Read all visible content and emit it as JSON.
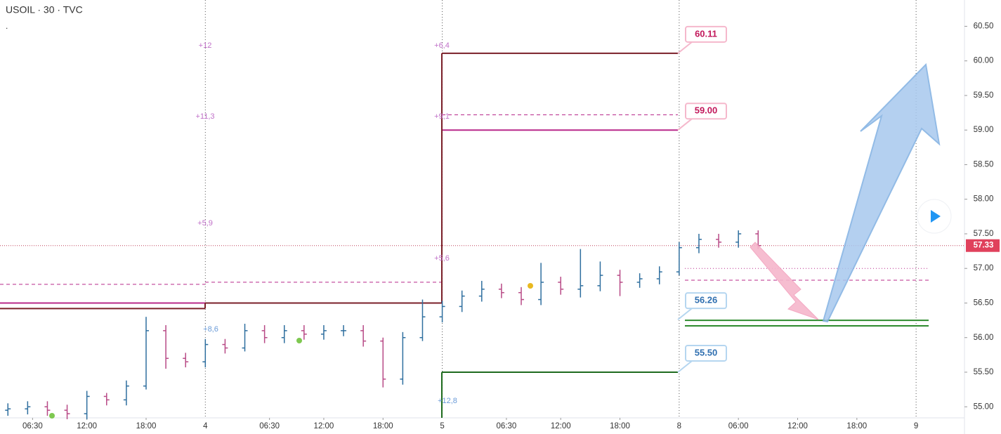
{
  "chart_data": {
    "type": "ohlc",
    "title": "USOIL · 30 · TVC",
    "subtitle": ".",
    "x": [
      -20,
      -18,
      -16,
      -14,
      -12,
      -10,
      -8,
      -6,
      -4,
      -2,
      0,
      2,
      4,
      6,
      8,
      10,
      12,
      14,
      16,
      18,
      20,
      22,
      24,
      26,
      28,
      30,
      32,
      34,
      36,
      38,
      40,
      42,
      44,
      46,
      48,
      50,
      52,
      54,
      56
    ],
    "open": [
      54.95,
      54.97,
      55.0,
      54.95,
      54.9,
      55.15,
      55.1,
      55.3,
      56.1,
      55.7,
      55.65,
      55.9,
      55.85,
      56.1,
      56.0,
      56.1,
      56.05,
      56.1,
      56.1,
      55.95,
      55.4,
      56.0,
      56.3,
      56.45,
      56.6,
      56.7,
      56.65,
      56.55,
      56.8,
      56.7,
      56.75,
      56.9,
      56.8,
      56.85,
      56.95,
      57.3,
      57.42,
      57.38,
      57.5
    ],
    "high": [
      55.05,
      55.08,
      55.08,
      55.03,
      55.23,
      55.2,
      55.38,
      56.3,
      56.18,
      55.78,
      55.98,
      55.98,
      56.2,
      56.18,
      56.18,
      56.18,
      56.18,
      56.18,
      56.18,
      56.0,
      56.08,
      56.55,
      56.53,
      56.68,
      56.82,
      56.78,
      56.73,
      57.08,
      56.88,
      57.28,
      57.1,
      56.98,
      56.93,
      57.03,
      57.38,
      57.5,
      57.5,
      57.55,
      57.55
    ],
    "low": [
      54.87,
      54.89,
      54.87,
      54.82,
      54.82,
      55.02,
      55.02,
      55.25,
      55.55,
      55.57,
      55.57,
      55.77,
      55.8,
      55.92,
      55.92,
      55.97,
      55.97,
      56.02,
      55.87,
      55.28,
      55.32,
      55.95,
      56.22,
      56.37,
      56.52,
      56.57,
      56.47,
      56.47,
      56.62,
      56.58,
      56.67,
      56.6,
      56.72,
      56.77,
      56.9,
      57.22,
      57.3,
      57.3,
      57.28
    ],
    "close": [
      54.97,
      55.0,
      54.95,
      54.9,
      55.15,
      55.1,
      55.3,
      56.1,
      55.7,
      55.65,
      55.9,
      55.85,
      56.1,
      56.0,
      56.1,
      56.05,
      56.1,
      56.1,
      55.95,
      55.4,
      56.0,
      56.3,
      56.45,
      56.6,
      56.7,
      56.65,
      56.55,
      56.8,
      56.7,
      56.75,
      56.9,
      56.8,
      56.85,
      56.95,
      57.3,
      57.42,
      57.38,
      57.5,
      57.33
    ],
    "up_color": "#2f6f9f",
    "down_color": "#b84a86",
    "xlim": [
      -20.8,
      76.9
    ],
    "xticks": [
      {
        "value": -17.5,
        "label": "06:30"
      },
      {
        "value": -12,
        "label": "12:00"
      },
      {
        "value": -6,
        "label": "18:00"
      },
      {
        "value": 0,
        "label": "4"
      },
      {
        "value": 6.5,
        "label": "06:30"
      },
      {
        "value": 12,
        "label": "12:00"
      },
      {
        "value": 18,
        "label": "18:00"
      },
      {
        "value": 24,
        "label": "5"
      },
      {
        "value": 30.5,
        "label": "06:30"
      },
      {
        "value": 36,
        "label": "12:00"
      },
      {
        "value": 42,
        "label": "18:00"
      },
      {
        "value": 48,
        "label": "8"
      },
      {
        "value": 54,
        "label": "06:00"
      },
      {
        "value": 60,
        "label": "12:00"
      },
      {
        "value": 66,
        "label": "18:00"
      },
      {
        "value": 72,
        "label": "9"
      }
    ],
    "ylim": [
      54.84,
      60.88
    ],
    "yticks": [
      {
        "value": 55,
        "label": "55.00"
      },
      {
        "value": 55.5,
        "label": "55.50"
      },
      {
        "value": 56,
        "label": "56.00"
      },
      {
        "value": 56.5,
        "label": "56.50"
      },
      {
        "value": 57,
        "label": "57.00"
      },
      {
        "value": 57.5,
        "label": "57.50"
      },
      {
        "value": 58,
        "label": "58.00"
      },
      {
        "value": 58.5,
        "label": "58.50"
      },
      {
        "value": 59,
        "label": "59.00"
      },
      {
        "value": 59.5,
        "label": "59.50"
      },
      {
        "value": 60,
        "label": "60.00"
      },
      {
        "value": 60.5,
        "label": "60.50"
      }
    ],
    "last_price": {
      "value": 57.33,
      "label": "57.33"
    },
    "price_labels": [
      {
        "value": 60.11,
        "label": "60.11",
        "color": "#c2185b"
      },
      {
        "value": 59.0,
        "label": "59.00",
        "color": "#c2185b"
      },
      {
        "value": 56.26,
        "label": "56.26",
        "color": "#2f6fb0"
      },
      {
        "value": 55.5,
        "label": "55.50",
        "color": "#2f6fb0"
      }
    ],
    "levels": [
      {
        "value": 56.42,
        "color": "#7a1f28",
        "style": "solid"
      },
      {
        "value": 56.5,
        "color": "#b8288a",
        "style": "solid"
      },
      {
        "value": 56.77,
        "color": "#b8288a",
        "style": "dashed"
      },
      {
        "value": 56.8,
        "color": "#b8288a",
        "style": "dashed"
      },
      {
        "value": 56.5,
        "color": "#7a1f28",
        "style": "solid"
      },
      {
        "value": 60.11,
        "color": "#7a1f28",
        "style": "solid"
      },
      {
        "value": 59.22,
        "color": "#b8288a",
        "style": "dashed"
      },
      {
        "value": 59.0,
        "color": "#b8288a",
        "style": "solid"
      },
      {
        "value": 55.5,
        "color": "#1e6b1e",
        "style": "solid"
      },
      {
        "value": 56.83,
        "color": "#b8288a",
        "style": "dashed"
      },
      {
        "value": 57.0,
        "color": "#b8288a",
        "style": "dotted"
      },
      {
        "value": 56.25,
        "color": "#2e8b2e",
        "style": "solid"
      },
      {
        "value": 56.17,
        "color": "#2e8b2e",
        "style": "solid"
      }
    ],
    "annotations": [
      {
        "text": "+12",
        "color": "#c070c8"
      },
      {
        "text": "+11,3",
        "color": "#c070c8"
      },
      {
        "text": "+5,9",
        "color": "#c070c8"
      },
      {
        "text": "+8,6",
        "color": "#6a9bd8"
      },
      {
        "text": "+6,4",
        "color": "#c070c8"
      },
      {
        "text": "+9,1",
        "color": "#c070c8"
      },
      {
        "text": "+5,6",
        "color": "#c070c8"
      },
      {
        "text": "+12,8",
        "color": "#6a9bd8"
      }
    ]
  }
}
